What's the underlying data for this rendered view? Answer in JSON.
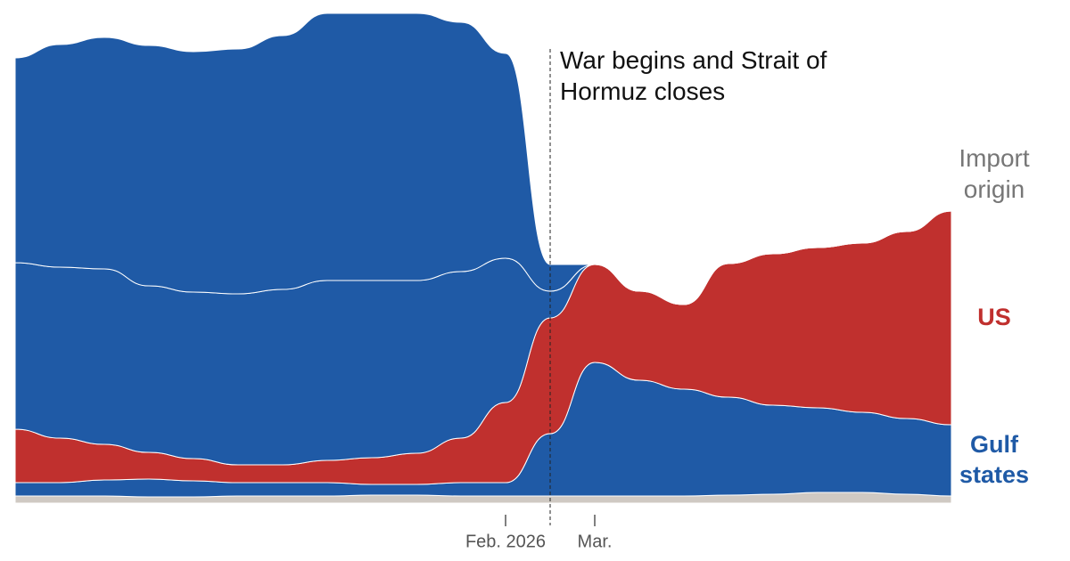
{
  "chart_data": {
    "type": "stream",
    "annotation": {
      "text": "War begins and Strait of Hormuz closes",
      "category_index": 12
    },
    "legend_title": "Import origin",
    "categories": [
      null,
      null,
      null,
      null,
      null,
      null,
      null,
      null,
      null,
      null,
      null,
      "Feb. 2026",
      null,
      "Mar.",
      null,
      null,
      null,
      null,
      null,
      null,
      null,
      null
    ],
    "ylim": [
      0,
      560
    ],
    "series": [
      {
        "color": "#cfc9c3",
        "values": [
          8,
          8,
          8,
          7,
          7,
          8,
          8,
          8,
          9,
          9,
          8,
          8,
          8,
          8,
          8,
          8,
          9,
          10,
          12,
          12,
          10,
          8
        ]
      },
      {
        "name": "Gulf states",
        "color": "#1f5aa6",
        "values": [
          15,
          15,
          18,
          20,
          18,
          15,
          15,
          15,
          12,
          12,
          15,
          15,
          70,
          150,
          130,
          120,
          110,
          100,
          95,
          90,
          85,
          80
        ]
      },
      {
        "name": "US",
        "color": "#c0302e",
        "values": [
          60,
          50,
          40,
          30,
          25,
          20,
          20,
          25,
          30,
          35,
          50,
          90,
          130,
          110,
          100,
          95,
          150,
          170,
          180,
          190,
          210,
          240
        ]
      },
      {
        "color": "#1f5aa6",
        "values": [
          187,
          192,
          197,
          187,
          187,
          192,
          197,
          202,
          199,
          194,
          187,
          162,
          30,
          0,
          0,
          0,
          0,
          0,
          0,
          0,
          0,
          0
        ]
      },
      {
        "color": "#1f5aa6",
        "values": [
          230,
          250,
          260,
          270,
          270,
          275,
          285,
          300,
          300,
          300,
          280,
          230,
          30,
          0,
          0,
          0,
          0,
          0,
          0,
          0,
          0,
          0
        ]
      }
    ]
  }
}
